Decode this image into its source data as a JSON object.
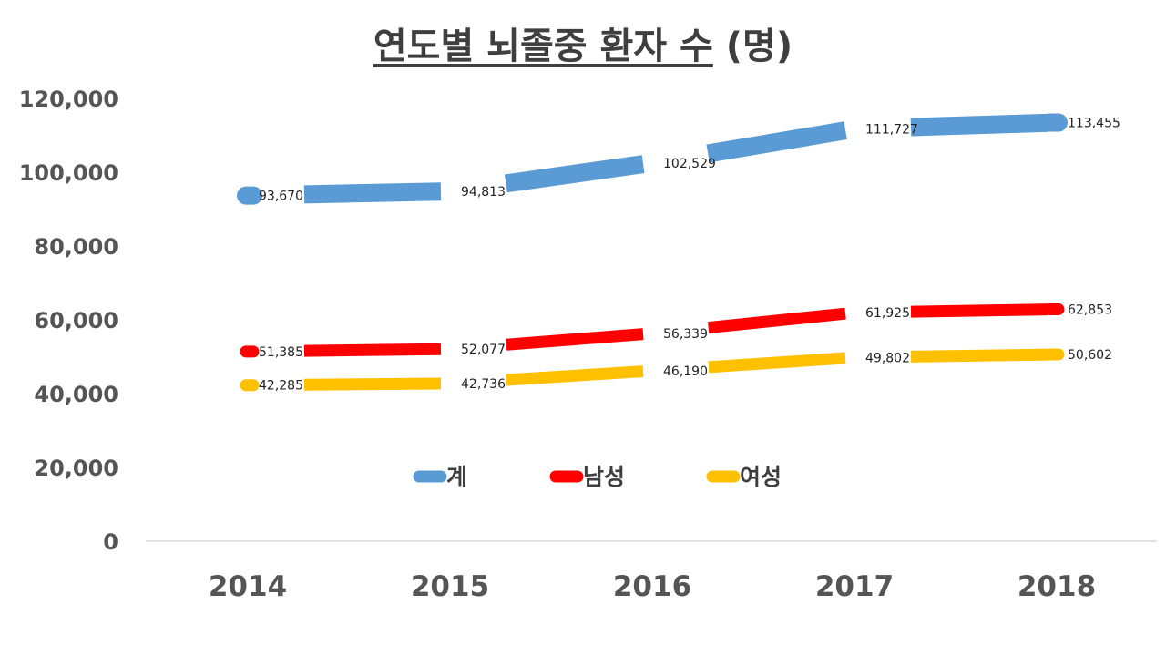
{
  "chart_data": {
    "type": "line",
    "title": "연도별 뇌졸중 환자 수",
    "title_unit": "(명)",
    "categories": [
      "2014",
      "2015",
      "2016",
      "2017",
      "2018"
    ],
    "series": [
      {
        "name": "계",
        "color": "#5b9bd5",
        "values": [
          93670,
          94813,
          102529,
          111727,
          113455
        ],
        "labels": [
          "93,670",
          "94,813",
          "102,529",
          "111,727",
          "113,455"
        ]
      },
      {
        "name": "남성",
        "color": "#ff0000",
        "values": [
          51385,
          52077,
          56339,
          61925,
          62853
        ],
        "labels": [
          "51,385",
          "52,077",
          "56,339",
          "61,925",
          "62,853"
        ]
      },
      {
        "name": "여성",
        "color": "#ffc000",
        "values": [
          42285,
          42736,
          46190,
          49802,
          50602
        ],
        "labels": [
          "42,285",
          "42,736",
          "46,190",
          "49,802",
          "50,602"
        ]
      }
    ],
    "ylim": [
      0,
      120000
    ],
    "yticks": [
      0,
      20000,
      40000,
      60000,
      80000,
      100000,
      120000
    ],
    "ytick_labels": [
      "0",
      "20,000",
      "40,000",
      "60,000",
      "80,000",
      "100,000",
      "120,000"
    ],
    "xlabel": "",
    "ylabel": "",
    "legend_position": "inside-bottom-center",
    "grid": false
  }
}
